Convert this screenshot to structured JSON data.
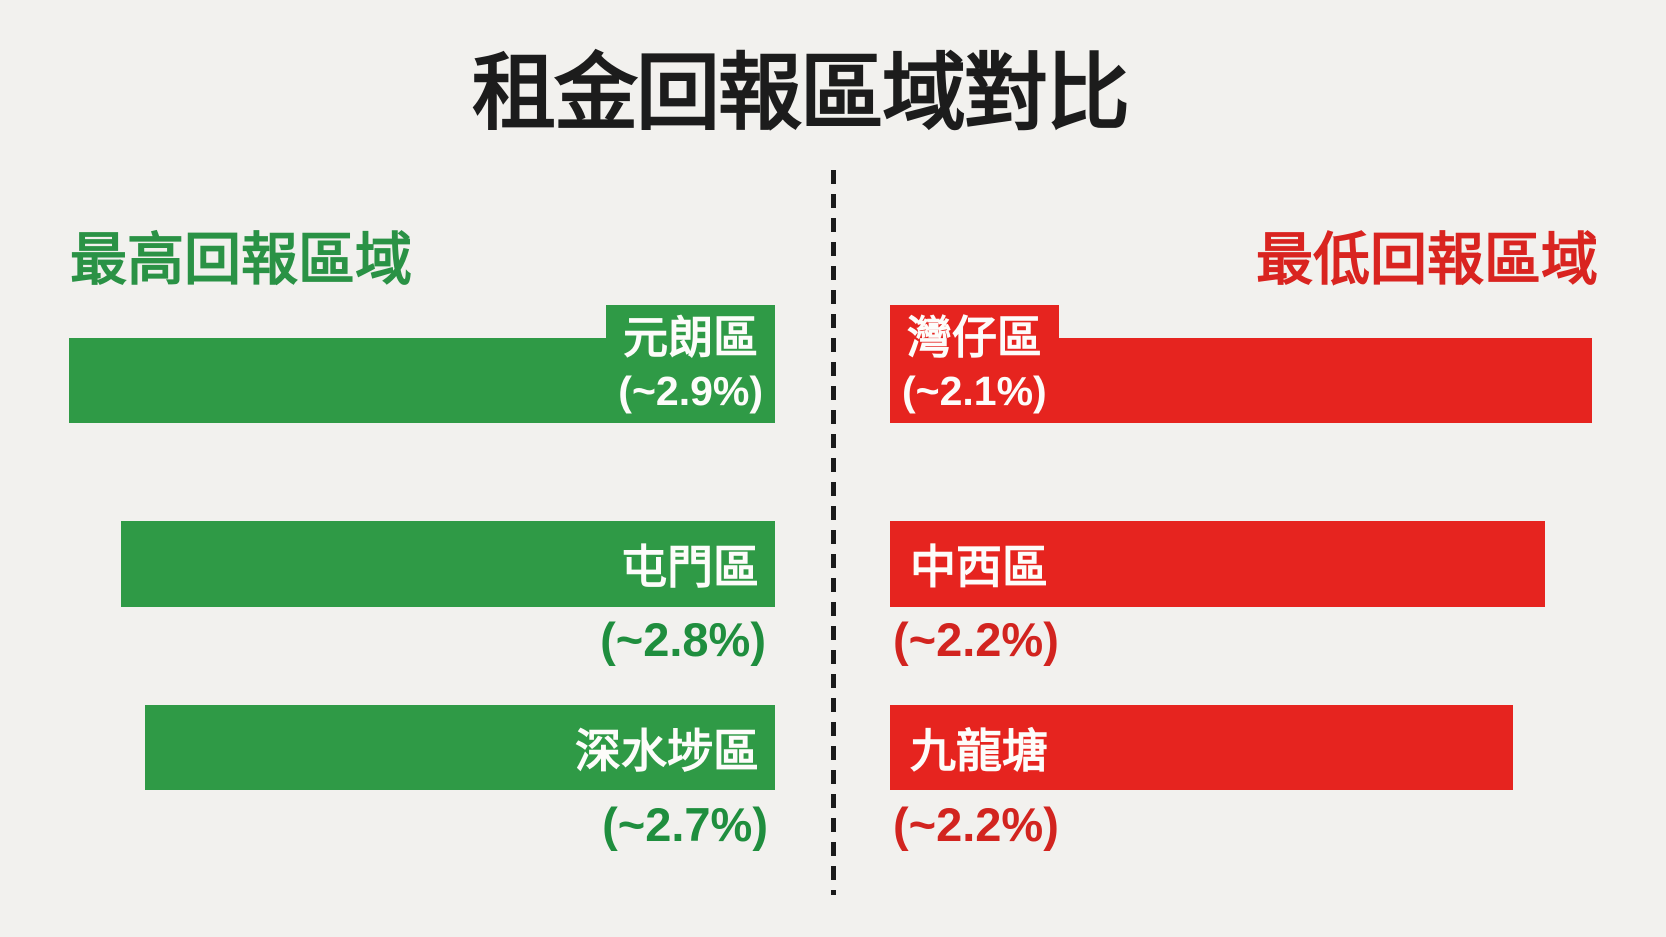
{
  "title": "租金回報區域對比",
  "colors": {
    "background": "#f2f1ee",
    "green_bar": "#2f9a46",
    "green_text": "#1f8e3e",
    "red_bar": "#e6241f",
    "red_text": "#d2241f",
    "ink": "#1c1c1c",
    "bar_label_text": "#ffffff"
  },
  "left": {
    "heading": "最高回報區域",
    "rows": [
      {
        "name": "元朗區",
        "pct": "(~2.9%)"
      },
      {
        "name": "屯門區",
        "pct": "(~2.8%)"
      },
      {
        "name": "深水埗區",
        "pct": "(~2.7%)"
      }
    ]
  },
  "right": {
    "heading": "最低回報區域",
    "rows": [
      {
        "name": "灣仔區",
        "pct": "(~2.1%)"
      },
      {
        "name": "中西區",
        "pct": "(~2.2%)"
      },
      {
        "name": "九龍塘",
        "pct": "(~2.2%)"
      }
    ]
  },
  "chart_data": {
    "type": "bar",
    "orientation": "horizontal",
    "title": "租金回報區域對比",
    "xlabel": "",
    "ylabel": "",
    "grid": false,
    "axes_shown": false,
    "legend_position": "column-headings",
    "series": [
      {
        "name": "最高回報區域",
        "color": "#2f9a46",
        "categories": [
          "元朗區",
          "屯門區",
          "深水埗區"
        ],
        "values": [
          2.9,
          2.8,
          2.7
        ],
        "value_labels": [
          "(~2.9%)",
          "(~2.8%)",
          "(~2.7%)"
        ],
        "unit": "% rental yield"
      },
      {
        "name": "最低回報區域",
        "color": "#e6241f",
        "categories": [
          "灣仔區",
          "中西區",
          "九龍塘"
        ],
        "values": [
          2.1,
          2.2,
          2.2
        ],
        "value_labels": [
          "(~2.1%)",
          "(~2.2%)",
          "(~2.2%)"
        ],
        "unit": "% rental yield"
      }
    ]
  }
}
